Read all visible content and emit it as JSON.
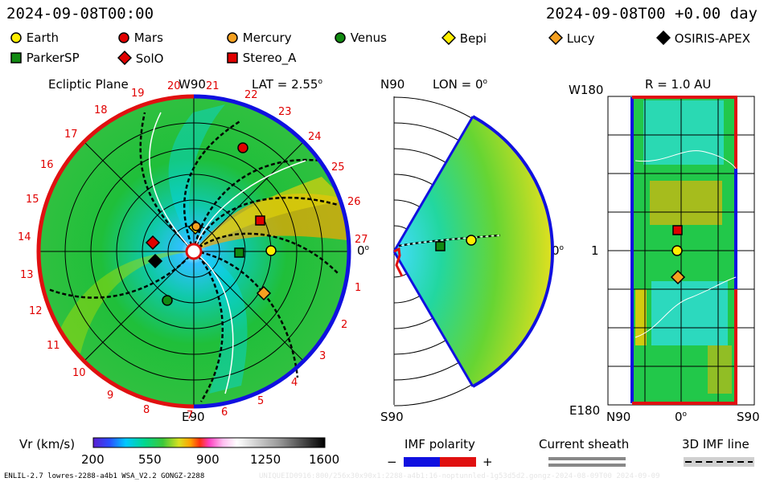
{
  "header": {
    "timestamp_left": "2024-09-08T00:00",
    "timestamp_right": "2024-09-08T00 +0.00 day"
  },
  "legend": [
    {
      "name": "Earth",
      "marker": "circle",
      "color": "#ffee00"
    },
    {
      "name": "Mars",
      "marker": "circle",
      "color": "#e00000"
    },
    {
      "name": "Mercury",
      "marker": "circle",
      "color": "#f5a020"
    },
    {
      "name": "Venus",
      "marker": "circle",
      "color": "#118a11"
    },
    {
      "name": "Bepi",
      "marker": "diamond",
      "color": "#ffee00"
    },
    {
      "name": "Lucy",
      "marker": "diamond",
      "color": "#f5a020"
    },
    {
      "name": "OSIRIS-APEX",
      "marker": "diamond",
      "color": "#000000"
    },
    {
      "name": "ParkerSP",
      "marker": "square",
      "color": "#118a11"
    },
    {
      "name": "SolO",
      "marker": "diamond",
      "color": "#e00000"
    },
    {
      "name": "Stereo_A",
      "marker": "square",
      "color": "#e00000"
    }
  ],
  "panel_ecliptic": {
    "title": "Ecliptic Plane",
    "lat_label": "LAT = 2.55",
    "lat_unit": "o",
    "top_label": "W90",
    "bottom_label": "E90",
    "right_label": "0",
    "right_unit": "o",
    "sector_numbers": [
      "1",
      "2",
      "3",
      "4",
      "5",
      "6",
      "7",
      "8",
      "9",
      "10",
      "11",
      "12",
      "13",
      "14",
      "15",
      "16",
      "17",
      "18",
      "19",
      "20",
      "21",
      "22",
      "23",
      "24",
      "25",
      "26",
      "27"
    ]
  },
  "panel_meridional": {
    "lon_label": "LON = 0",
    "lon_unit": "o",
    "top_label": "N90",
    "bottom_label": "S90",
    "right_label": "0",
    "right_unit": "o"
  },
  "panel_map": {
    "r_label": "R = 1.0 AU",
    "top_left": "W180",
    "bottom_left": "E180",
    "mid_left": "1",
    "bottom_n": "N90",
    "bottom_mid": "0",
    "bottom_mid_unit": "o",
    "bottom_s": "S90"
  },
  "colorbar": {
    "label": "Vr (km/s)",
    "ticks": [
      "200",
      "550",
      "900",
      "1250",
      "1600"
    ]
  },
  "imf_polarity": {
    "title": "IMF polarity",
    "minus": "−",
    "plus": "+"
  },
  "current_sheath": {
    "title": "Current sheath"
  },
  "imf_line": {
    "title": "3D IMF line"
  },
  "footer": {
    "model_info": "ENLIL-2.7 lowres-2288-a4b1 WSA_V2.2 GONGZ-2288",
    "faint_right": "UNIQUEID0916:800/256x30x90x1:2288-a4b1:16-noptunnled-1g53d5d2.gongz-2024-08-09T00  2024-09-09"
  },
  "chart_data": [
    {
      "type": "heatmap",
      "title": "Ecliptic Plane",
      "description_quantity": "Vr (km/s)",
      "color_scale": {
        "min": 200,
        "max": 1600
      },
      "objects": [
        "Earth",
        "Mars",
        "Mercury",
        "Venus",
        "Bepi",
        "Lucy",
        "OSIRIS-APEX",
        "ParkerSP",
        "SolO",
        "Stereo_A"
      ]
    },
    {
      "type": "heatmap",
      "title": "LON = 0",
      "color_scale": {
        "min": 200,
        "max": 1600
      },
      "objects": [
        "Earth",
        "ParkerSP"
      ]
    },
    {
      "type": "heatmap",
      "title": "R = 1.0 AU",
      "color_scale": {
        "min": 200,
        "max": 1600
      },
      "objects": [
        "Earth",
        "Stereo_A",
        "Lucy"
      ]
    }
  ]
}
